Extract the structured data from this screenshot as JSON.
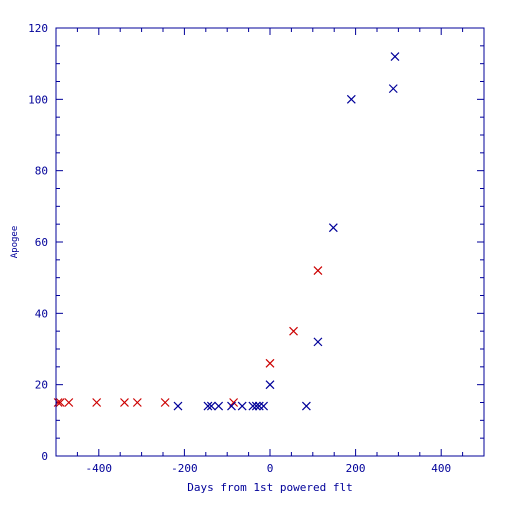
{
  "chart_data": {
    "type": "scatter",
    "xlabel": "Days from 1st powered flt",
    "ylabel": "Apogee",
    "xlim": [
      -500,
      500
    ],
    "ylim": [
      0,
      120
    ],
    "x_ticks": [
      -400,
      -200,
      0,
      200,
      400
    ],
    "y_ticks": [
      0,
      20,
      40,
      60,
      80,
      100,
      120
    ],
    "x_tick_labels": [
      "-400",
      "-200",
      "0",
      "200",
      "400"
    ],
    "y_tick_labels": [
      "0",
      "20",
      "40",
      "60",
      "80",
      "100",
      "120"
    ],
    "marker": "x",
    "grid": false,
    "series": [
      {
        "color": "#cc0000",
        "points": [
          {
            "x": -495,
            "y": 15
          },
          {
            "x": -490,
            "y": 15
          },
          {
            "x": -470,
            "y": 15
          },
          {
            "x": -405,
            "y": 15
          },
          {
            "x": -340,
            "y": 15
          },
          {
            "x": -310,
            "y": 15
          },
          {
            "x": -245,
            "y": 15
          },
          {
            "x": -85,
            "y": 15
          },
          {
            "x": 0,
            "y": 26
          },
          {
            "x": 55,
            "y": 35
          },
          {
            "x": 112,
            "y": 52
          }
        ]
      },
      {
        "color": "#000099",
        "points": [
          {
            "x": -215,
            "y": 14
          },
          {
            "x": -145,
            "y": 14
          },
          {
            "x": -137,
            "y": 14
          },
          {
            "x": -120,
            "y": 14
          },
          {
            "x": -90,
            "y": 14
          },
          {
            "x": -65,
            "y": 14
          },
          {
            "x": -40,
            "y": 14
          },
          {
            "x": -32,
            "y": 14
          },
          {
            "x": -25,
            "y": 14
          },
          {
            "x": -15,
            "y": 14
          },
          {
            "x": 0,
            "y": 20
          },
          {
            "x": 85,
            "y": 14
          },
          {
            "x": 112,
            "y": 32
          },
          {
            "x": 148,
            "y": 64
          },
          {
            "x": 190,
            "y": 100
          },
          {
            "x": 288,
            "y": 103
          },
          {
            "x": 292,
            "y": 112
          }
        ]
      }
    ]
  },
  "colors": {
    "axis": "#000099"
  }
}
